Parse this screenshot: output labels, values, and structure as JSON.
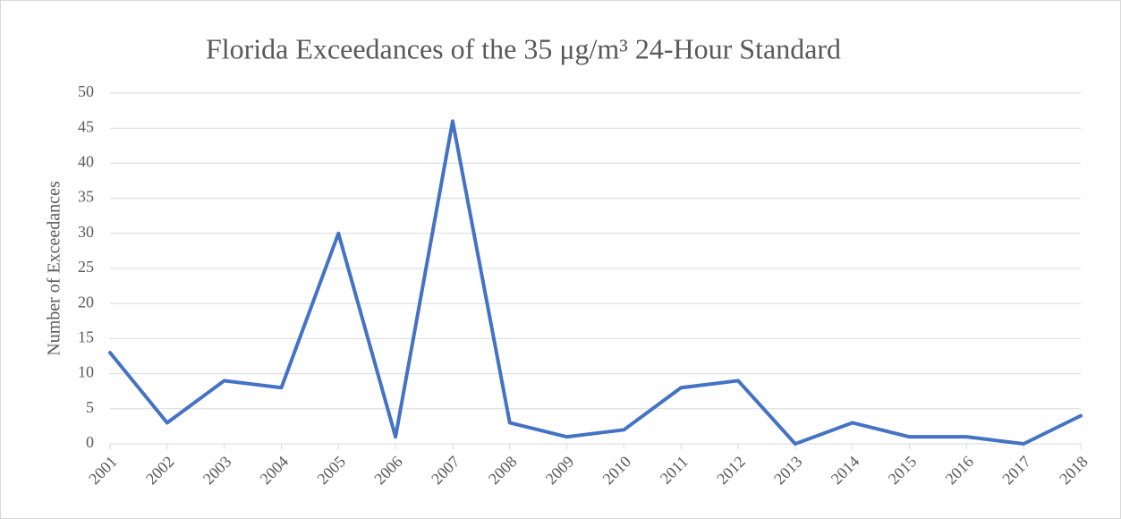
{
  "chart_data": {
    "type": "line",
    "title": "Florida Exceedances of the 35 μg/m³ 24-Hour Standard",
    "y_label": "Number of Exceedances",
    "categories": [
      "2001",
      "2002",
      "2003",
      "2004",
      "2005",
      "2006",
      "2007",
      "2008",
      "2009",
      "2010",
      "2011",
      "2012",
      "2013",
      "2014",
      "2015",
      "2016",
      "2017",
      "2018"
    ],
    "values": [
      13,
      3,
      9,
      8,
      30,
      1,
      46,
      3,
      1,
      2,
      8,
      9,
      0,
      3,
      1,
      1,
      0,
      4
    ],
    "color": "#4472c4",
    "ylim": [
      0,
      50
    ],
    "yticks": [
      0,
      5,
      10,
      15,
      20,
      25,
      30,
      35,
      40,
      45,
      50
    ],
    "grid": true
  }
}
